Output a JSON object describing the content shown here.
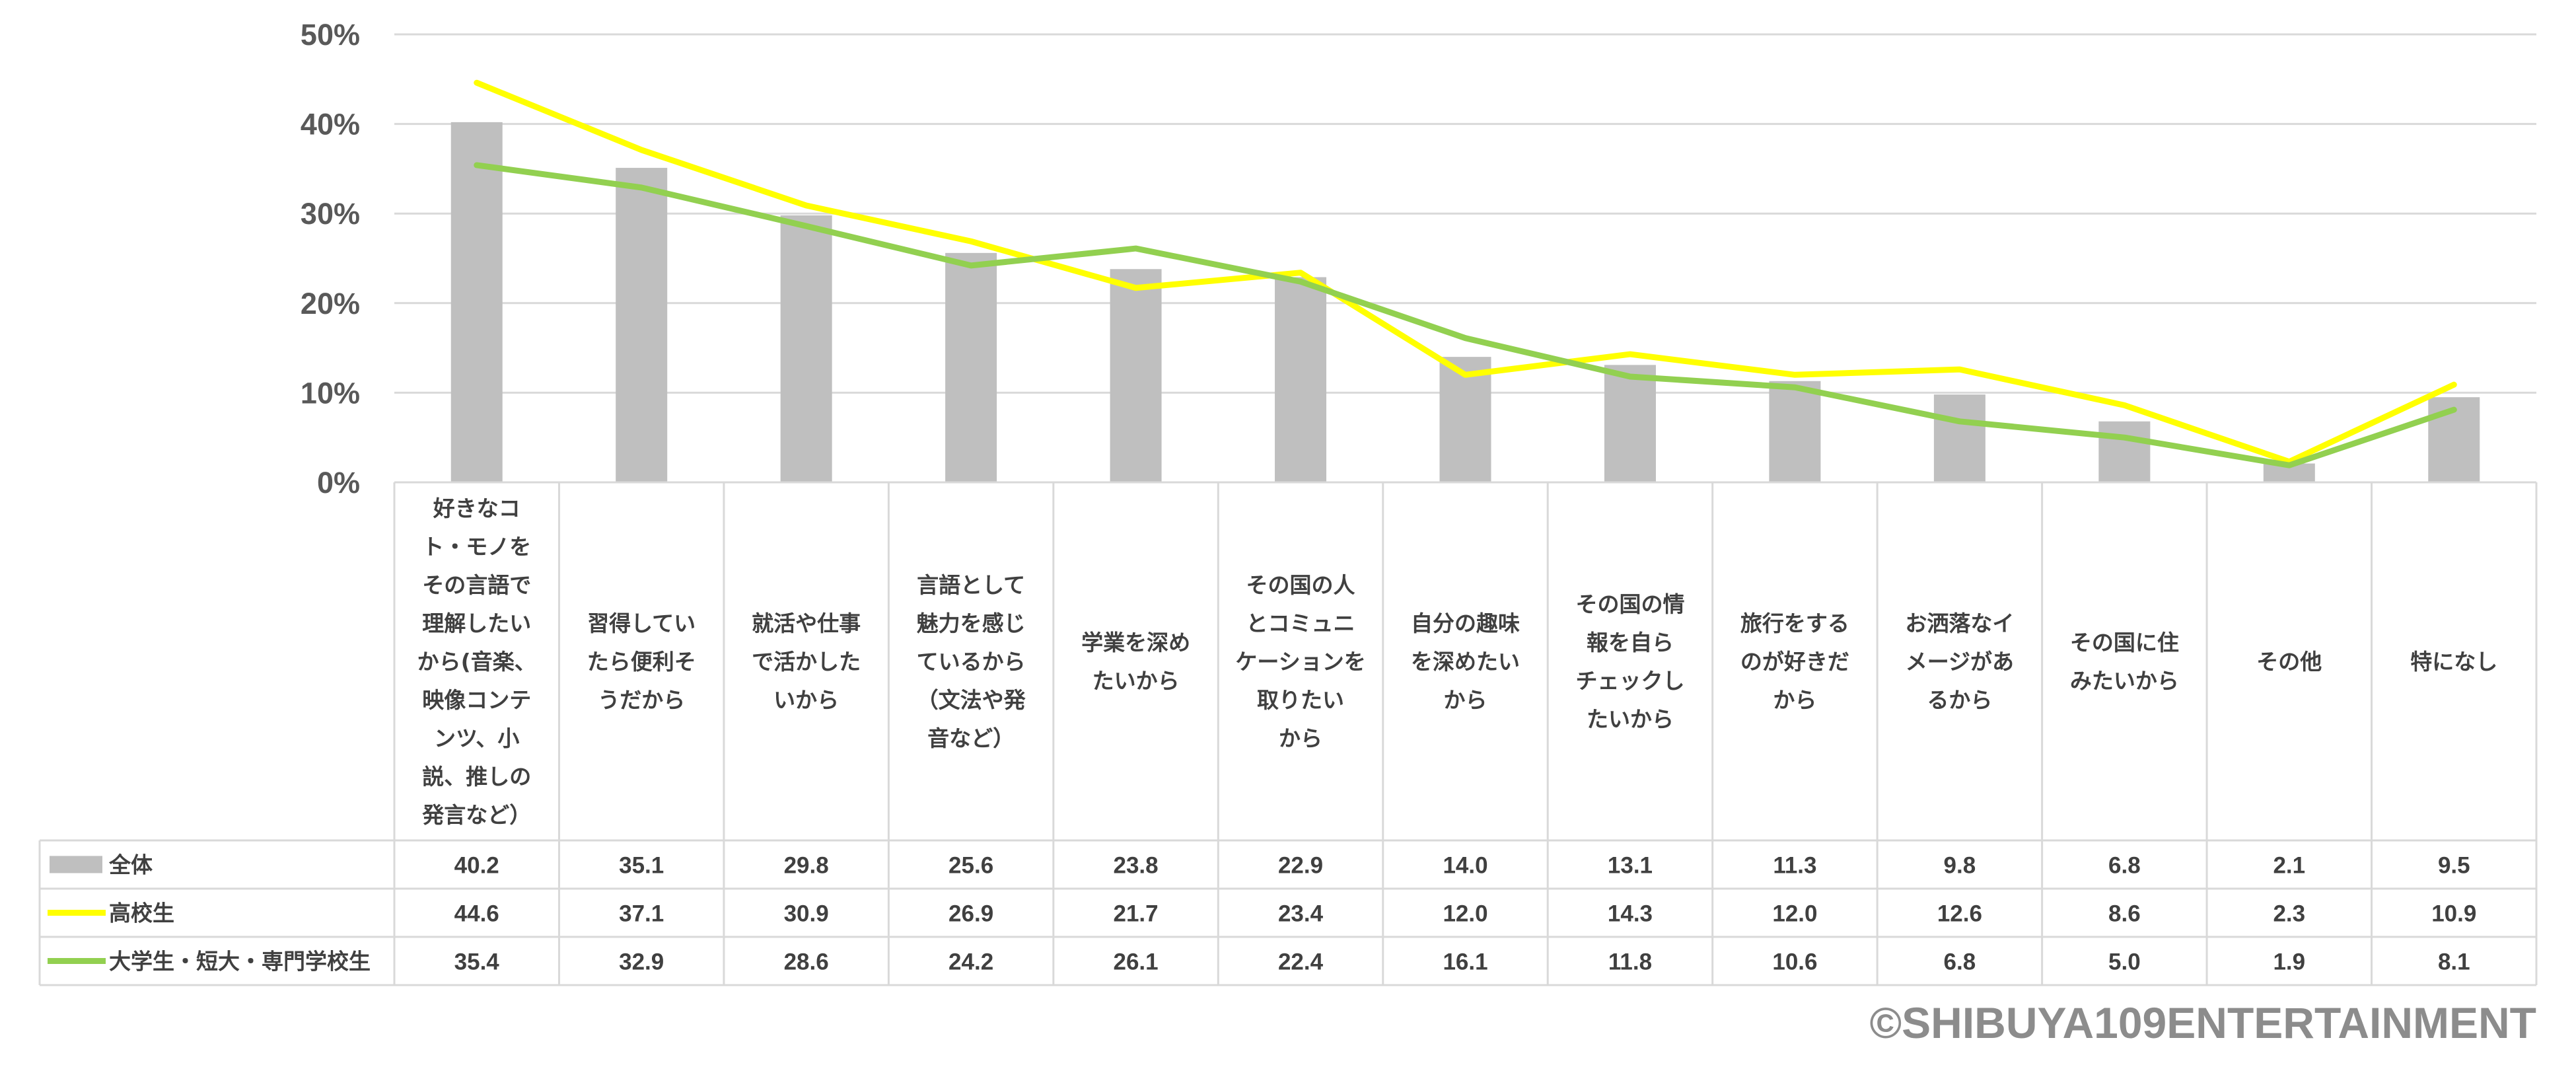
{
  "chart_data": {
    "type": "bar",
    "categories": [
      [
        "好きなコ",
        "ト・モノを",
        "その言語で",
        "理解したい",
        "から(音楽、",
        "映像コンテ",
        "ンツ、小",
        "説、推しの",
        "発言など）"
      ],
      [
        "習得してい",
        "たら便利そ",
        "うだから"
      ],
      [
        "就活や仕事",
        "で活かした",
        "いから"
      ],
      [
        "言語として",
        "魅力を感じ",
        "ているから",
        "（文法や発",
        "音など）"
      ],
      [
        "学業を深め",
        "たいから"
      ],
      [
        "その国の人",
        "とコミュニ",
        "ケーションを",
        "取りたい",
        "から"
      ],
      [
        "自分の趣味",
        "を深めたい",
        "から"
      ],
      [
        "その国の情",
        "報を自ら",
        "チェックし",
        "たいから"
      ],
      [
        "旅行をする",
        "のが好きだ",
        "から"
      ],
      [
        "お洒落なイ",
        "メージがあ",
        "るから"
      ],
      [
        "その国に住",
        "みたいから"
      ],
      [
        "その他"
      ],
      [
        "特になし"
      ]
    ],
    "series": [
      {
        "name": "全体",
        "type": "bar",
        "color": "#bfbfbf",
        "values": [
          40.2,
          35.1,
          29.8,
          25.6,
          23.8,
          22.9,
          14.0,
          13.1,
          11.3,
          9.8,
          6.8,
          2.1,
          9.5
        ],
        "labels": [
          "40.2",
          "35.1",
          "29.8",
          "25.6",
          "23.8",
          "22.9",
          "14.0",
          "13.1",
          "11.3",
          "9.8",
          "6.8",
          "2.1",
          "9.5"
        ]
      },
      {
        "name": "高校生",
        "type": "line",
        "color": "#ffff00",
        "values": [
          44.6,
          37.1,
          30.9,
          26.9,
          21.7,
          23.4,
          12.0,
          14.3,
          12.0,
          12.6,
          8.6,
          2.3,
          10.9
        ],
        "labels": [
          "44.6",
          "37.1",
          "30.9",
          "26.9",
          "21.7",
          "23.4",
          "12.0",
          "14.3",
          "12.0",
          "12.6",
          "8.6",
          "2.3",
          "10.9"
        ]
      },
      {
        "name": "大学生・短大・専門学校生",
        "type": "line",
        "color": "#92d050",
        "values": [
          35.4,
          32.9,
          28.6,
          24.2,
          26.1,
          22.4,
          16.1,
          11.8,
          10.6,
          6.8,
          5.0,
          1.9,
          8.1
        ],
        "labels": [
          "35.4",
          "32.9",
          "28.6",
          "24.2",
          "26.1",
          "22.4",
          "16.1",
          "11.8",
          "10.6",
          "6.8",
          "5.0",
          "1.9",
          "8.1"
        ]
      }
    ],
    "yticks": [
      "0%",
      "10%",
      "20%",
      "30%",
      "40%",
      "50%"
    ],
    "ylim": [
      0,
      50
    ],
    "grid": true,
    "data_table": true
  },
  "copyright": "©SHIBUYA109ENTERTAINMENT"
}
